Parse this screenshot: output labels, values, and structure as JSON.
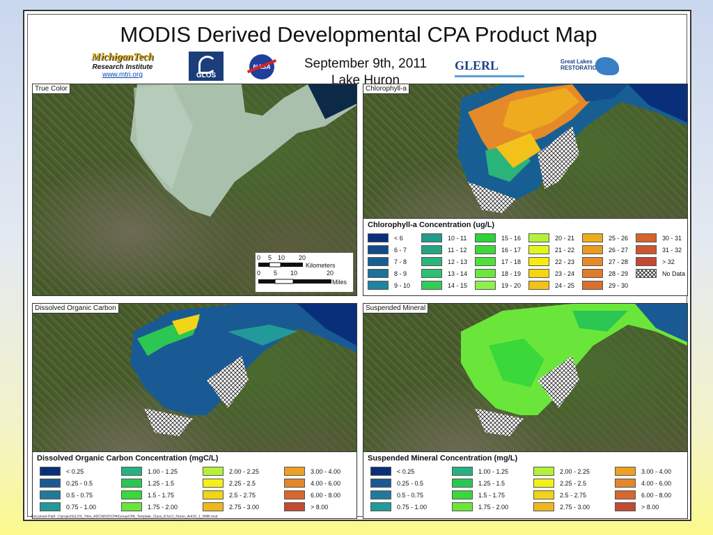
{
  "header": {
    "title": "MODIS Derived Developmental CPA Product Map",
    "date": "September 9th, 2011",
    "lake": "Lake Huron"
  },
  "logos": {
    "mtu_name": "MichiganTech",
    "mtu_sub": "Research Institute",
    "mtu_url": "www.mtri.org",
    "glos": "GLOS",
    "nasa": "NASA",
    "glerl": "GLERL",
    "glr": "Great Lakes RESTORATION"
  },
  "panels": {
    "true_color": "True Color",
    "chlorophyll": "Chlorophyll-a",
    "doc": "Dissolved Organic Carbon",
    "sm": "Suspended Mineral"
  },
  "scale": {
    "km_ticks": [
      "0",
      "5",
      "10",
      "20"
    ],
    "km_label": "Kilometers",
    "mi_ticks": [
      "0",
      "5",
      "10",
      "20"
    ],
    "mi_label": "Miles"
  },
  "legends": {
    "chl": {
      "title": "Chlorophyll-a Concentration (ug/L)",
      "items": [
        {
          "label": "< 6",
          "color": "#0a2f7a"
        },
        {
          "label": "6 - 7",
          "color": "#124b8a"
        },
        {
          "label": "7 - 8",
          "color": "#175f93"
        },
        {
          "label": "8 - 9",
          "color": "#1b729a"
        },
        {
          "label": "9 - 10",
          "color": "#1e859f"
        },
        {
          "label": "10 - 11",
          "color": "#23998f"
        },
        {
          "label": "11 - 12",
          "color": "#26a583"
        },
        {
          "label": "12 - 13",
          "color": "#2ab47a"
        },
        {
          "label": "13 - 14",
          "color": "#2ec070"
        },
        {
          "label": "14 - 15",
          "color": "#33cb5a"
        },
        {
          "label": "15 - 16",
          "color": "#2ad33a"
        },
        {
          "label": "16 - 17",
          "color": "#3ed83a"
        },
        {
          "label": "17 - 18",
          "color": "#4fe03c"
        },
        {
          "label": "18 - 19",
          "color": "#6be83e"
        },
        {
          "label": "19 - 20",
          "color": "#8ef04a"
        },
        {
          "label": "20 - 21",
          "color": "#b4f23a"
        },
        {
          "label": "21 - 22",
          "color": "#e3f51e"
        },
        {
          "label": "22 - 23",
          "color": "#f6ec10"
        },
        {
          "label": "23 - 24",
          "color": "#f5d60e"
        },
        {
          "label": "24 - 25",
          "color": "#f2c11a"
        },
        {
          "label": "25 - 26",
          "color": "#eeab20"
        },
        {
          "label": "26 - 27",
          "color": "#ea9a24"
        },
        {
          "label": "27 - 28",
          "color": "#e58a28"
        },
        {
          "label": "28 - 29",
          "color": "#e07c2b"
        },
        {
          "label": "29 - 30",
          "color": "#da6e2e"
        },
        {
          "label": "30 - 31",
          "color": "#d4632e"
        },
        {
          "label": "31 - 32",
          "color": "#cc5630"
        },
        {
          "label": "> 32",
          "color": "#c24a33"
        },
        {
          "label": "No Data",
          "color": "hatch"
        }
      ]
    },
    "doc": {
      "title": "Dissolved Organic Carbon Concentration (mgC/L)",
      "items": [
        {
          "label": "< 0.25",
          "color": "#0a2f7a"
        },
        {
          "label": "0.25 - 0.5",
          "color": "#1a5a94"
        },
        {
          "label": "0.5 - 0.75",
          "color": "#1f7a9c"
        },
        {
          "label": "0.75 - 1.00",
          "color": "#229a99"
        },
        {
          "label": "1.00 - 1.25",
          "color": "#27b082"
        },
        {
          "label": "1.25 - 1.5",
          "color": "#2cc652"
        },
        {
          "label": "1.5 - 1.75",
          "color": "#3ad83a"
        },
        {
          "label": "1.75 - 2.00",
          "color": "#6ae63a"
        },
        {
          "label": "2.00 - 2.25",
          "color": "#b4f23a"
        },
        {
          "label": "2.25 - 2.5",
          "color": "#f4f01a"
        },
        {
          "label": "2.5 - 2.75",
          "color": "#f2d418"
        },
        {
          "label": "2.75 - 3.00",
          "color": "#efb820"
        },
        {
          "label": "3.00 - 4.00",
          "color": "#eea024"
        },
        {
          "label": "4.00 - 6.00",
          "color": "#e4862a"
        },
        {
          "label": "6.00 - 8.00",
          "color": "#d6672e"
        },
        {
          "label": "> 8.00",
          "color": "#c24a33"
        }
      ]
    },
    "sm": {
      "title": "Suspended Mineral Concentration (mg/L)",
      "items": [
        {
          "label": "< 0.25",
          "color": "#0a2f7a"
        },
        {
          "label": "0.25 - 0.5",
          "color": "#1a5a94"
        },
        {
          "label": "0.5 - 0.75",
          "color": "#1f7a9c"
        },
        {
          "label": "0.75 - 1.00",
          "color": "#229a99"
        },
        {
          "label": "1.00 - 1.25",
          "color": "#27b082"
        },
        {
          "label": "1.25 - 1.5",
          "color": "#2cc652"
        },
        {
          "label": "1.5 - 1.75",
          "color": "#3ad83a"
        },
        {
          "label": "1.75 - 2.00",
          "color": "#6ae63a"
        },
        {
          "label": "2.00 - 2.25",
          "color": "#b4f23a"
        },
        {
          "label": "2.25 - 2.5",
          "color": "#f4f01a"
        },
        {
          "label": "2.5 - 2.75",
          "color": "#f2d418"
        },
        {
          "label": "2.75 - 3.00",
          "color": "#efb820"
        },
        {
          "label": "3.00 - 4.00",
          "color": "#eea024"
        },
        {
          "label": "4.00 - 6.00",
          "color": "#e4862a"
        },
        {
          "label": "6.00 - 8.00",
          "color": "#d6672e"
        },
        {
          "label": "> 8.00",
          "color": "#c24a33"
        }
      ]
    }
  },
  "footer": {
    "doc_path": "Document Path: J:\\project\\GLOS_Tribs_ADC\\MXD\\CPA\\GroupCPA_Template_Class_8.5x11_Huron_Ar410_1_DMB.mxd"
  }
}
